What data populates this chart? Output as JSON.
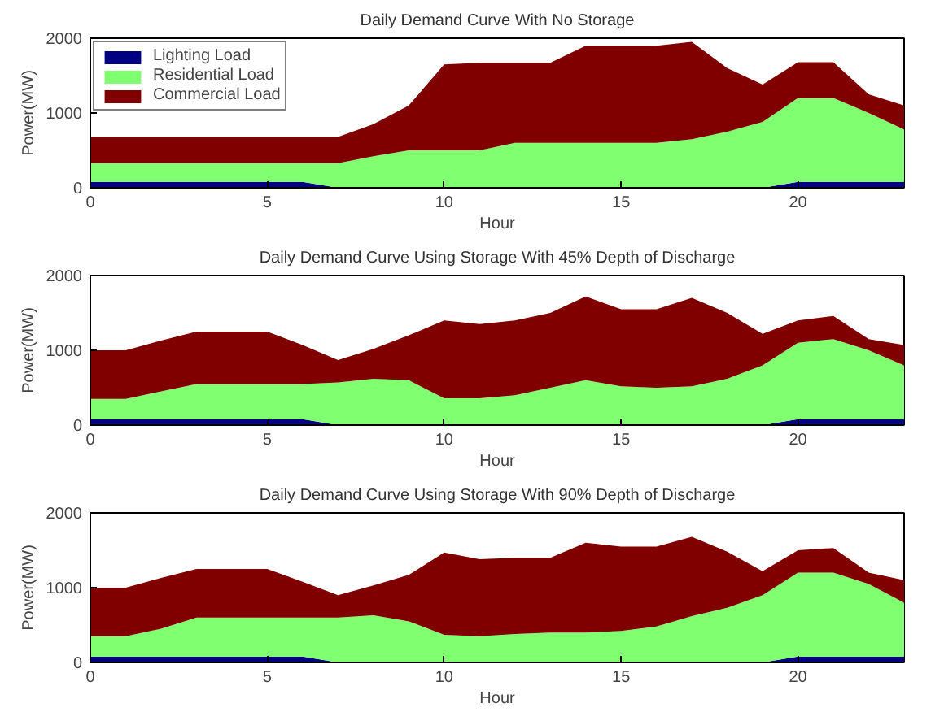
{
  "chart_data": [
    {
      "type": "area",
      "stacked": true,
      "title": "Daily Demand Curve With No Storage",
      "xlabel": "Hour",
      "ylabel": "Power(MW)",
      "x": [
        0,
        1,
        2,
        3,
        4,
        5,
        6,
        7,
        8,
        9,
        10,
        11,
        12,
        13,
        14,
        15,
        16,
        17,
        18,
        19,
        20,
        21,
        22,
        23
      ],
      "xlim": [
        0,
        23
      ],
      "xticks": [
        0,
        5,
        10,
        15,
        20
      ],
      "ylim": [
        0,
        2000
      ],
      "yticks": [
        0,
        1000,
        2000
      ],
      "grid": false,
      "legend": "top left",
      "series": [
        {
          "name": "Lighting Load",
          "color": "#000080",
          "values": [
            80,
            80,
            80,
            80,
            80,
            80,
            80,
            0,
            0,
            0,
            0,
            0,
            0,
            0,
            0,
            0,
            0,
            0,
            0,
            0,
            80,
            80,
            80,
            80
          ]
        },
        {
          "name": "Residential Load",
          "color": "#80ff70",
          "values": [
            250,
            250,
            250,
            250,
            250,
            250,
            250,
            330,
            420,
            500,
            500,
            500,
            600,
            600,
            600,
            600,
            600,
            650,
            750,
            880,
            1120,
            1120,
            920,
            700
          ]
        },
        {
          "name": "Commercial Load",
          "color": "#800000",
          "values": [
            350,
            350,
            350,
            350,
            350,
            350,
            350,
            350,
            430,
            600,
            1150,
            1170,
            1070,
            1070,
            1300,
            1300,
            1300,
            1300,
            850,
            500,
            480,
            480,
            250,
            320
          ]
        }
      ]
    },
    {
      "type": "area",
      "stacked": true,
      "title": "Daily Demand Curve Using Storage With 45% Depth of Discharge",
      "xlabel": "Hour",
      "ylabel": "Power(MW)",
      "x": [
        0,
        1,
        2,
        3,
        4,
        5,
        6,
        7,
        8,
        9,
        10,
        11,
        12,
        13,
        14,
        15,
        16,
        17,
        18,
        19,
        20,
        21,
        22,
        23
      ],
      "xlim": [
        0,
        23
      ],
      "xticks": [
        0,
        5,
        10,
        15,
        20
      ],
      "ylim": [
        0,
        2000
      ],
      "yticks": [
        0,
        1000,
        2000
      ],
      "grid": false,
      "series": [
        {
          "color": "#000080",
          "values": [
            80,
            80,
            80,
            80,
            80,
            80,
            80,
            0,
            0,
            0,
            0,
            0,
            0,
            0,
            0,
            0,
            0,
            0,
            0,
            0,
            80,
            80,
            80,
            80
          ]
        },
        {
          "color": "#80ff70",
          "values": [
            270,
            270,
            370,
            470,
            470,
            470,
            470,
            570,
            620,
            600,
            360,
            360,
            400,
            500,
            600,
            520,
            500,
            520,
            620,
            800,
            1020,
            1070,
            920,
            720
          ]
        },
        {
          "color": "#800000",
          "values": [
            650,
            650,
            680,
            700,
            700,
            700,
            520,
            300,
            400,
            600,
            1040,
            990,
            1000,
            1000,
            1120,
            1030,
            1050,
            1180,
            880,
            420,
            300,
            310,
            150,
            270
          ]
        }
      ]
    },
    {
      "type": "area",
      "stacked": true,
      "title": "Daily Demand Curve Using Storage With 90% Depth of Discharge",
      "xlabel": "Hour",
      "ylabel": "Power(MW)",
      "x": [
        0,
        1,
        2,
        3,
        4,
        5,
        6,
        7,
        8,
        9,
        10,
        11,
        12,
        13,
        14,
        15,
        16,
        17,
        18,
        19,
        20,
        21,
        22,
        23
      ],
      "xlim": [
        0,
        23
      ],
      "xticks": [
        0,
        5,
        10,
        15,
        20
      ],
      "ylim": [
        0,
        2000
      ],
      "yticks": [
        0,
        1000,
        2000
      ],
      "grid": false,
      "series": [
        {
          "color": "#000080",
          "values": [
            80,
            80,
            80,
            80,
            80,
            80,
            80,
            0,
            0,
            0,
            0,
            0,
            0,
            0,
            0,
            0,
            0,
            0,
            0,
            0,
            80,
            80,
            80,
            80
          ]
        },
        {
          "color": "#80ff70",
          "values": [
            270,
            270,
            370,
            520,
            520,
            520,
            520,
            600,
            630,
            550,
            370,
            350,
            380,
            400,
            400,
            420,
            480,
            620,
            730,
            900,
            1120,
            1120,
            970,
            720
          ]
        },
        {
          "color": "#800000",
          "values": [
            650,
            650,
            680,
            650,
            650,
            650,
            480,
            300,
            400,
            620,
            1100,
            1030,
            1020,
            1000,
            1200,
            1130,
            1070,
            1060,
            750,
            320,
            300,
            330,
            150,
            300
          ]
        }
      ]
    }
  ]
}
